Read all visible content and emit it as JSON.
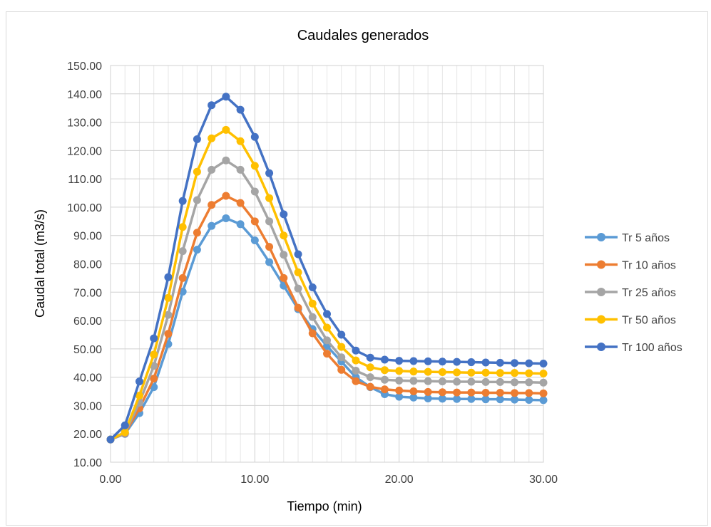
{
  "chart_data": {
    "type": "line",
    "title": "Caudales generados",
    "xlabel": "Tiempo (min)",
    "ylabel": "Caudal total (m3/s)",
    "xlim": [
      0,
      30
    ],
    "ylim": [
      10,
      150
    ],
    "x_ticks": [
      "0.00",
      "10.00",
      "20.00",
      "30.00"
    ],
    "y_ticks": [
      "10.00",
      "20.00",
      "30.00",
      "40.00",
      "50.00",
      "60.00",
      "70.00",
      "80.00",
      "90.00",
      "100.00",
      "110.00",
      "120.00",
      "130.00",
      "140.00",
      "150.00"
    ],
    "grid": true,
    "legend_position": "right",
    "x": [
      0,
      1,
      2,
      3,
      4,
      5,
      6,
      7,
      8,
      9,
      10,
      11,
      12,
      13,
      14,
      15,
      16,
      17,
      18,
      19,
      20,
      21,
      22,
      23,
      24,
      25,
      26,
      27,
      28,
      29,
      30
    ],
    "series": [
      {
        "name": "Tr 5 años",
        "color": "#5b9bd5",
        "values": [
          18.0,
          20.0,
          27.3,
          36.5,
          51.7,
          70.2,
          85.0,
          93.4,
          96.1,
          94.0,
          88.3,
          80.6,
          72.3,
          64.0,
          57.0,
          51.0,
          45.5,
          40.0,
          36.5,
          34.0,
          33.1,
          32.8,
          32.5,
          32.4,
          32.3,
          32.3,
          32.2,
          32.2,
          32.1,
          32.0,
          31.9
        ]
      },
      {
        "name": "Tr 10 años",
        "color": "#ed7d31",
        "values": [
          18.0,
          20.2,
          29.0,
          39.5,
          55.3,
          75.0,
          91.0,
          100.8,
          104.0,
          101.5,
          95.0,
          86.0,
          75.0,
          64.5,
          55.5,
          48.3,
          42.6,
          38.6,
          36.6,
          35.7,
          35.3,
          35.0,
          34.8,
          34.7,
          34.6,
          34.6,
          34.5,
          34.5,
          34.4,
          34.4,
          34.3
        ]
      },
      {
        "name": "Tr 25 años",
        "color": "#a5a5a5",
        "values": [
          18.0,
          20.4,
          31.0,
          44.0,
          62.0,
          84.5,
          102.5,
          113.2,
          116.5,
          113.2,
          105.5,
          95.0,
          83.2,
          71.3,
          61.2,
          53.0,
          47.0,
          42.3,
          40.0,
          39.1,
          38.8,
          38.7,
          38.6,
          38.5,
          38.4,
          38.4,
          38.3,
          38.3,
          38.2,
          38.2,
          38.1
        ]
      },
      {
        "name": "Tr 50 años",
        "color": "#ffc000",
        "values": [
          18.0,
          20.6,
          33.5,
          48.0,
          68.0,
          93.0,
          112.5,
          124.3,
          127.3,
          123.3,
          114.6,
          103.2,
          90.0,
          77.0,
          66.0,
          57.5,
          50.7,
          45.9,
          43.5,
          42.5,
          42.2,
          42.0,
          41.9,
          41.8,
          41.7,
          41.6,
          41.6,
          41.5,
          41.5,
          41.4,
          41.3
        ]
      },
      {
        "name": "Tr 100 años",
        "color": "#4472c4",
        "values": [
          18.0,
          23.0,
          38.5,
          53.7,
          75.3,
          102.2,
          124.0,
          136.0,
          139.0,
          134.4,
          124.8,
          112.0,
          97.5,
          83.4,
          71.7,
          62.3,
          55.0,
          49.4,
          46.9,
          46.2,
          45.8,
          45.7,
          45.6,
          45.5,
          45.4,
          45.3,
          45.2,
          45.1,
          45.0,
          44.9,
          44.8
        ]
      }
    ]
  }
}
